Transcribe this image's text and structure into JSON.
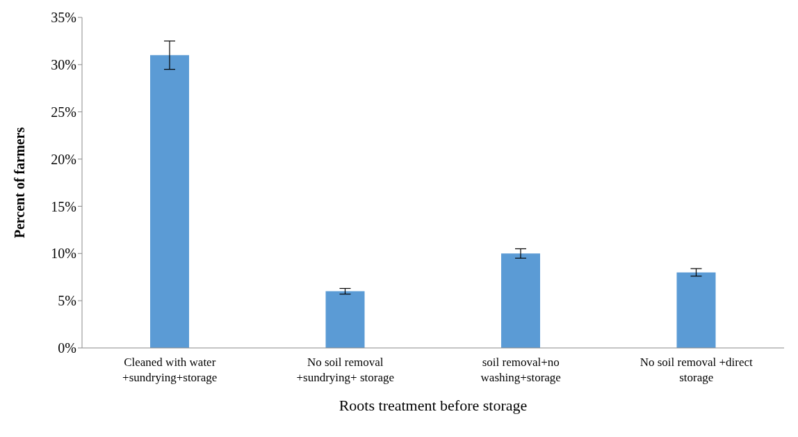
{
  "chart_data": {
    "type": "bar",
    "xlabel": "Roots treatment before storage",
    "ylabel": "Percent of farmers",
    "categories": [
      "Cleaned with water +sundrying+storage",
      "No soil removal +sundrying+ storage",
      "soil removal+no washing+storage",
      "No soil removal +direct storage"
    ],
    "values": [
      31,
      6,
      10,
      8
    ],
    "errors": [
      1.5,
      0.3,
      0.5,
      0.4
    ],
    "color": "#5b9bd5",
    "ylim": [
      0,
      35
    ],
    "yticks": [
      {
        "value": 0,
        "label": "0%"
      },
      {
        "value": 5,
        "label": "5%"
      },
      {
        "value": 10,
        "label": "10%"
      },
      {
        "value": 15,
        "label": "15%"
      },
      {
        "value": 20,
        "label": "20%"
      },
      {
        "value": 25,
        "label": "25%"
      },
      {
        "value": 30,
        "label": "30%"
      },
      {
        "value": 35,
        "label": "35%"
      }
    ],
    "grid": false,
    "legend": false
  }
}
